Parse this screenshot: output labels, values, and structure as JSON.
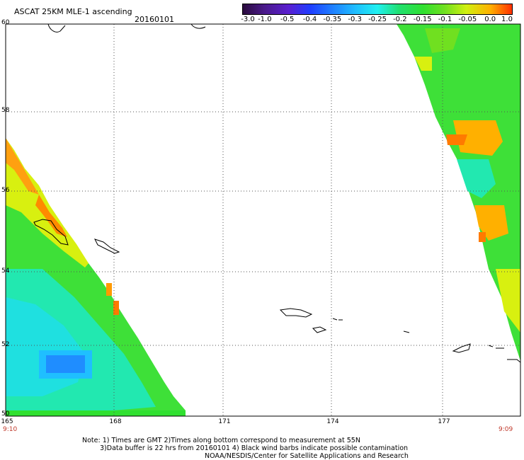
{
  "header": {
    "title": "ASCAT 25KM MLE-1 ascending",
    "date": "20160101"
  },
  "colorbar": {
    "labels": [
      "-3.0",
      "-1.0",
      "-0.5",
      "-0.4",
      "-0.35",
      "-0.3",
      "-0.25",
      "-0.2",
      "-0.15",
      "-0.1",
      "-0.05",
      "0.0",
      "1.0"
    ],
    "colors": [
      "#2a0b3d",
      "#4a1a8a",
      "#5a1fd0",
      "#1f3dff",
      "#1f7dff",
      "#1fbfff",
      "#20f0f0",
      "#20e070",
      "#30e030",
      "#70e020",
      "#d0f010",
      "#ffb000",
      "#ff3000"
    ]
  },
  "map": {
    "latitudes": [
      "60",
      "58",
      "56",
      "54",
      "52",
      "50"
    ],
    "longitudes": [
      "165",
      "168",
      "171",
      "174",
      "177"
    ],
    "time_left": "9:10",
    "time_right": "9:09"
  },
  "footer": {
    "line1": "Note: 1) Times are GMT 2)Times along bottom correspond to measurement at 55N",
    "line2": "3)Data buffer is 22 hrs from 20160101 4) Black wind barbs indicate possible contamination",
    "line3": "NOAA/NESDIS/Center for Satellite Applications and Research"
  }
}
